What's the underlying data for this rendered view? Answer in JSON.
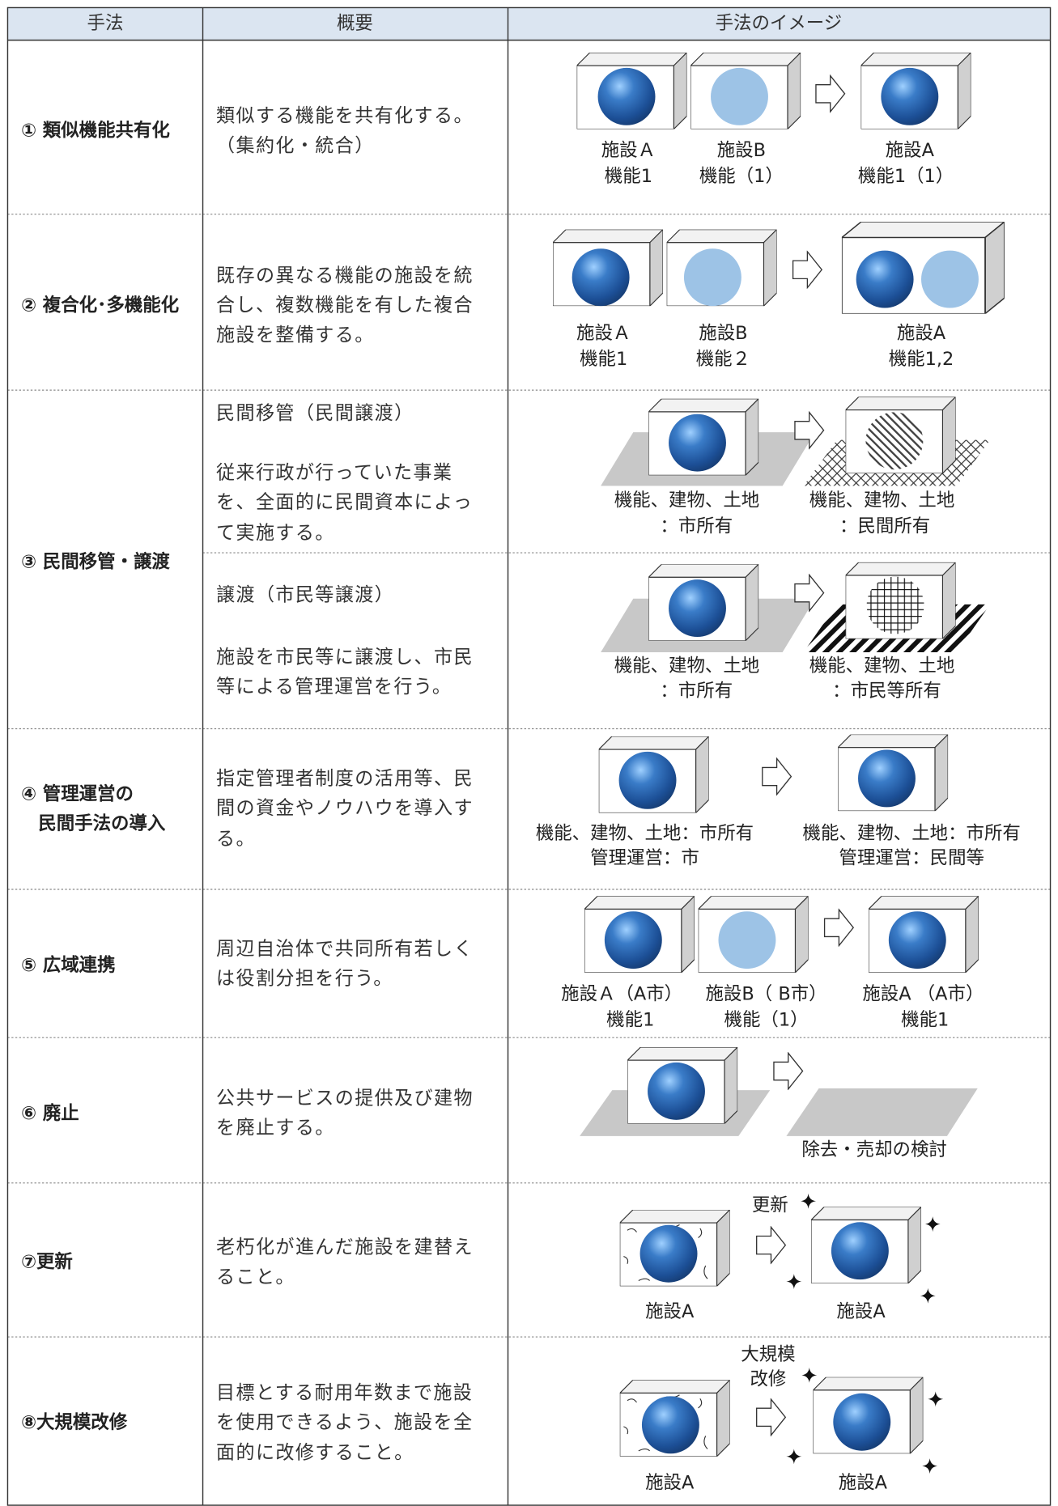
{
  "table": {
    "header": [
      "手法",
      "概要",
      "手法のイメージ"
    ],
    "rows": [
      {
        "method": [
          "① 類似機能共有化"
        ],
        "summary": [
          "類似する機能を共有化する。",
          "（集約化・統合）"
        ],
        "image_labels": [
          [
            "施設Ａ",
            "機能1"
          ],
          [
            "施設B",
            "機能（1）"
          ],
          [
            "施設A",
            "機能1（1）"
          ]
        ]
      },
      {
        "method": [
          "② 複合化･多機能化"
        ],
        "summary": [
          "既存の異なる機能の施設を統",
          "合し、複数機能を有した複合",
          "施設を整備する。"
        ],
        "image_labels": [
          [
            "施設Ａ",
            "機能1"
          ],
          [
            "施設B",
            "機能２"
          ],
          [
            "施設A",
            "機能1,2"
          ]
        ]
      },
      {
        "method": [
          "③ 民間移管・譲渡"
        ],
        "parts": [
          {
            "title": "民間移管（民間譲渡）",
            "summary": [
              "従来行政が行っていた事業",
              "を、全面的に民間資本によっ",
              "て実施する。"
            ],
            "image_labels": [
              [
                "機能、建物、土地",
                "：市所有"
              ],
              [
                "機能、建物、土地",
                "：民間所有"
              ]
            ]
          },
          {
            "title": "譲渡（市民等譲渡）",
            "summary": [
              "施設を市民等に譲渡し、市民",
              "等による管理運営を行う。"
            ],
            "image_labels": [
              [
                "機能、建物、土地",
                "：市所有"
              ],
              [
                "機能、建物、土地",
                "：市民等所有"
              ]
            ]
          }
        ]
      },
      {
        "method": [
          "④ 管理運営の",
          "民間手法の導入"
        ],
        "summary": [
          "指定管理者制度の活用等、民",
          "間の資金やノウハウを導入す",
          "る。"
        ],
        "image_labels": [
          [
            "機能、建物、土地：市所有",
            "管理運営：市"
          ],
          [
            "機能、建物、土地：市所有",
            "管理運営：民間等"
          ]
        ]
      },
      {
        "method": [
          "⑤ 広域連携"
        ],
        "summary": [
          "周辺自治体で共同所有若しく",
          "は役割分担を行う。"
        ],
        "image_labels": [
          [
            "施設Ａ（A市）",
            "機能1"
          ],
          [
            "施設B（ B市）",
            "機能（1）"
          ],
          [
            "施設A （A市）",
            "機能1"
          ]
        ]
      },
      {
        "method": [
          "⑥ 廃止"
        ],
        "summary": [
          "公共サービスの提供及び建物",
          "を廃止する。"
        ],
        "image_labels": [
          [
            "除去・売却の検討"
          ]
        ]
      },
      {
        "method": [
          "⑦更新"
        ],
        "summary": [
          "老朽化が進んだ施設を建替え",
          "ること。"
        ],
        "arrow_label": [
          "更新"
        ],
        "image_labels": [
          [
            "施設A"
          ],
          [
            "施設A"
          ]
        ]
      },
      {
        "method": [
          "⑧大規模改修"
        ],
        "summary": [
          "目標とする耐用年数まで施設",
          "を使用できるよう、施設を全",
          "面的に改修すること。"
        ],
        "arrow_label": [
          "大規模",
          "改修"
        ],
        "image_labels": [
          [
            "施設A"
          ],
          [
            "施設A"
          ]
        ]
      }
    ]
  }
}
